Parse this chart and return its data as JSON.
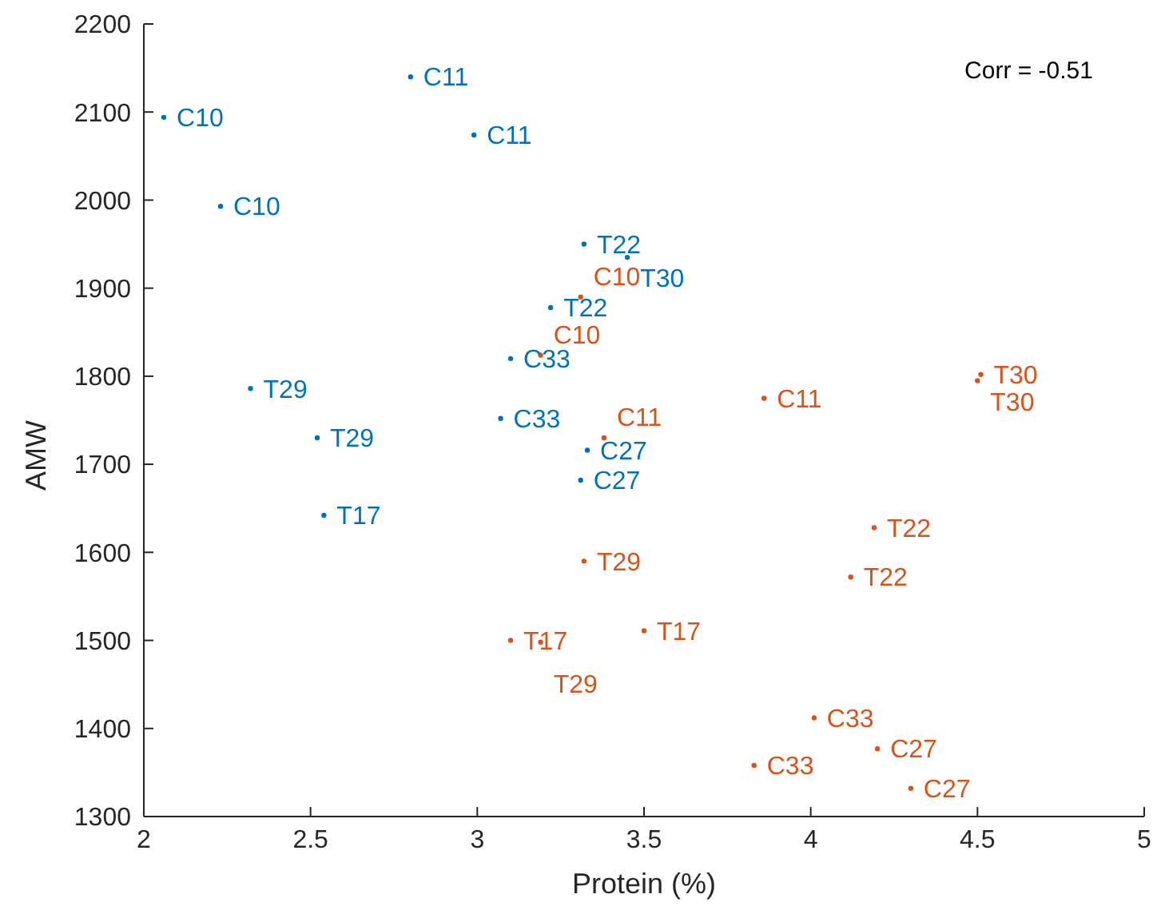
{
  "chart_data": {
    "type": "scatter",
    "xlabel": "Protein (%)",
    "ylabel": "AMW",
    "xlim": [
      2,
      5
    ],
    "xticks": [
      2,
      2.5,
      3,
      3.5,
      4,
      4.5,
      5
    ],
    "ylim": [
      1300,
      2200
    ],
    "yticks": [
      1300,
      1400,
      1500,
      1600,
      1700,
      1800,
      1900,
      2000,
      2100,
      2200
    ],
    "grid": false,
    "legend": false,
    "marker": "circle",
    "annotations": [
      "Corr = -0.51"
    ],
    "series": [
      {
        "color": "#0072bd",
        "x": [
          2.06,
          2.8,
          2.99,
          2.23,
          3.32,
          3.45,
          3.22,
          3.1,
          2.32,
          3.07,
          3.33,
          3.31,
          2.52,
          2.54
        ],
        "values": [
          2094,
          2140,
          2074,
          1993,
          1950,
          1935,
          1878,
          1820,
          1786,
          1752,
          1716,
          1682,
          1730,
          1642
        ],
        "value_labels": [
          "C10",
          "C11",
          "C11",
          "C10",
          "T22",
          "T30",
          "T22",
          "C33",
          "T29",
          "C33",
          "C27",
          "C27",
          "T29",
          "T17"
        ]
      },
      {
        "color": "#d95319",
        "x": [
          3.31,
          3.19,
          3.86,
          3.38,
          4.51,
          4.5,
          4.19,
          4.12,
          3.32,
          3.1,
          3.19,
          3.5,
          4.01,
          4.2,
          3.83,
          4.3
        ],
        "values": [
          1890,
          1824,
          1775,
          1730,
          1802,
          1795,
          1628,
          1572,
          1590,
          1500,
          1498,
          1511,
          1412,
          1377,
          1358,
          1332
        ],
        "value_labels": [
          "C10",
          "C10",
          "C11",
          "C11",
          "T30",
          "T30",
          "T22",
          "T22",
          "T29",
          "T17",
          "T29",
          "T17",
          "C33",
          "C27",
          "C33",
          "C27"
        ]
      }
    ]
  }
}
